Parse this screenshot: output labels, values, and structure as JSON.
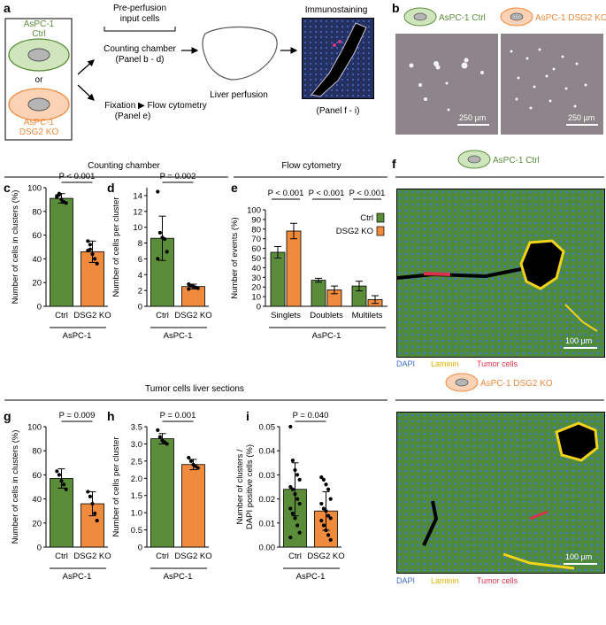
{
  "colors": {
    "green": "#5b8c3a",
    "orange": "#f08a3c",
    "green_light": "#cfe6bd",
    "orange_light": "#fbd2b5",
    "tissue_green": "#4f8a3a",
    "dapi": "#3b6fd6",
    "laminin": "#f2d21a",
    "tumor": "#d8334a"
  },
  "panels": {
    "a": {
      "letter": "a",
      "cell_top": "AsPC-1\nCtrl",
      "or": "or",
      "cell_bottom": "AsPC-1\nDSG2 KO",
      "preperfusion": "Pre-perfusion\ninput cells",
      "counting": "Counting chamber\n(Panel b - d)",
      "fixation": "Fixation ▶ Flow cytometry\n(Panel e)",
      "liver": "Liver perfusion",
      "immuno": "Immunostaining",
      "immuno_panel": "(Panel f - i)"
    },
    "b": {
      "letter": "b",
      "legend_ctrl": "AsPC-1 Ctrl",
      "legend_ko": "AsPC-1 DSG2 KO",
      "scale_left": "250 µm",
      "scale_right": "250 µm"
    },
    "f": {
      "letter": "f",
      "legend_ctrl": "AsPC-1 Ctrl",
      "legend_ko": "AsPC-1 DSG2 KO",
      "scale_top": "100 µm",
      "scale_bottom": "100 µm",
      "dapi": "DAPI",
      "laminin": "Laminin",
      "tumor": "Tumor cells"
    },
    "sections": {
      "counting": "Counting chamber",
      "flow": "Flow cytometry",
      "liver": "Tumor cells liver sections"
    }
  },
  "chart_data": [
    {
      "id": "c",
      "letter": "c",
      "type": "bar",
      "categories": [
        "Ctrl",
        "DSG2 KO"
      ],
      "values": [
        91,
        46
      ],
      "errors": [
        4,
        9
      ],
      "points": [
        [
          93,
          95,
          90,
          88,
          87,
          92,
          94
        ],
        [
          55,
          48,
          44,
          40,
          36,
          47,
          52
        ]
      ],
      "ylabel": "Number of cells in clusters (%)",
      "ylim": [
        0,
        100
      ],
      "yticks": [
        0,
        20,
        40,
        60,
        80,
        100
      ],
      "pvalue": "P < 0.001",
      "group": "AsPC-1"
    },
    {
      "id": "d",
      "letter": "d",
      "type": "bar",
      "categories": [
        "Ctrl",
        "DSG2 KO"
      ],
      "values": [
        8.6,
        2.5
      ],
      "errors": [
        2.8,
        0.3
      ],
      "points": [
        [
          14.5,
          9.3,
          8.7,
          8.5,
          6.9,
          6.0
        ],
        [
          2.8,
          2.6,
          2.5,
          2.4,
          2.3,
          2.2
        ]
      ],
      "ylabel": "Number of cells per cluster",
      "ylim": [
        0,
        15
      ],
      "yticks": [
        0,
        2,
        4,
        6,
        8,
        10,
        12,
        14
      ],
      "pvalue": "P = 0.002",
      "group": "AsPC-1"
    },
    {
      "id": "e",
      "letter": "e",
      "type": "bar",
      "categories": [
        "Singlets",
        "Doublets",
        "Multilets"
      ],
      "series": [
        {
          "name": "Ctrl",
          "values": [
            56,
            27,
            21
          ],
          "errors": [
            6,
            2,
            5
          ]
        },
        {
          "name": "DSG2 KO",
          "values": [
            78,
            17,
            7
          ],
          "errors": [
            8,
            4,
            4
          ]
        }
      ],
      "ylabel": "Number of events (%)",
      "ylim": [
        0,
        100
      ],
      "yticks": [
        0,
        10,
        20,
        30,
        40,
        50,
        60,
        70,
        80,
        90,
        100
      ],
      "pvalues": [
        "P < 0.001",
        "P < 0.001",
        "P < 0.001"
      ],
      "group": "AsPC-1"
    },
    {
      "id": "g",
      "letter": "g",
      "type": "bar",
      "categories": [
        "Ctrl",
        "DSG2 KO"
      ],
      "values": [
        57,
        36
      ],
      "errors": [
        8,
        10
      ],
      "points": [
        [
          63,
          60,
          55,
          52,
          48
        ],
        [
          46,
          42,
          36,
          28,
          22
        ]
      ],
      "ylabel": "Number of cells in clusters (%)",
      "ylim": [
        0,
        100
      ],
      "yticks": [
        0,
        20,
        40,
        60,
        80,
        100
      ],
      "pvalue": "P = 0.009",
      "group": "AsPC-1"
    },
    {
      "id": "h",
      "letter": "h",
      "type": "bar",
      "categories": [
        "Ctrl",
        "DSG2 KO"
      ],
      "values": [
        3.15,
        2.4
      ],
      "errors": [
        0.15,
        0.15
      ],
      "points": [
        [
          3.4,
          3.2,
          3.1,
          3.05,
          3.0
        ],
        [
          2.6,
          2.5,
          2.4,
          2.35,
          2.3
        ]
      ],
      "ylabel": "Number of cells per cluster",
      "ylim": [
        0,
        3.5
      ],
      "yticks": [
        0,
        0.5,
        1.0,
        1.5,
        2.0,
        2.5,
        3.0,
        3.5
      ],
      "pvalue": "P = 0.001",
      "group": "AsPC-1"
    },
    {
      "id": "i",
      "letter": "i",
      "type": "bar",
      "categories": [
        "Ctrl",
        "DSG2 KO"
      ],
      "values": [
        0.024,
        0.015
      ],
      "errors": [
        0.011,
        0.008
      ],
      "points": [
        [
          0.05,
          0.036,
          0.032,
          0.03,
          0.028,
          0.025,
          0.024,
          0.022,
          0.02,
          0.018,
          0.016,
          0.014,
          0.012,
          0.009,
          0.006,
          0.004
        ],
        [
          0.029,
          0.028,
          0.026,
          0.024,
          0.02,
          0.018,
          0.016,
          0.015,
          0.013,
          0.012,
          0.011,
          0.009,
          0.007,
          0.005,
          0.003
        ]
      ],
      "ylabel": "Number of clusters /\nDAPI positive cells (%)",
      "ylim": [
        0,
        0.05
      ],
      "yticks": [
        0,
        0.01,
        0.02,
        0.03,
        0.04,
        0.05
      ],
      "pvalue": "P = 0.040",
      "group": "AsPC-1"
    }
  ]
}
